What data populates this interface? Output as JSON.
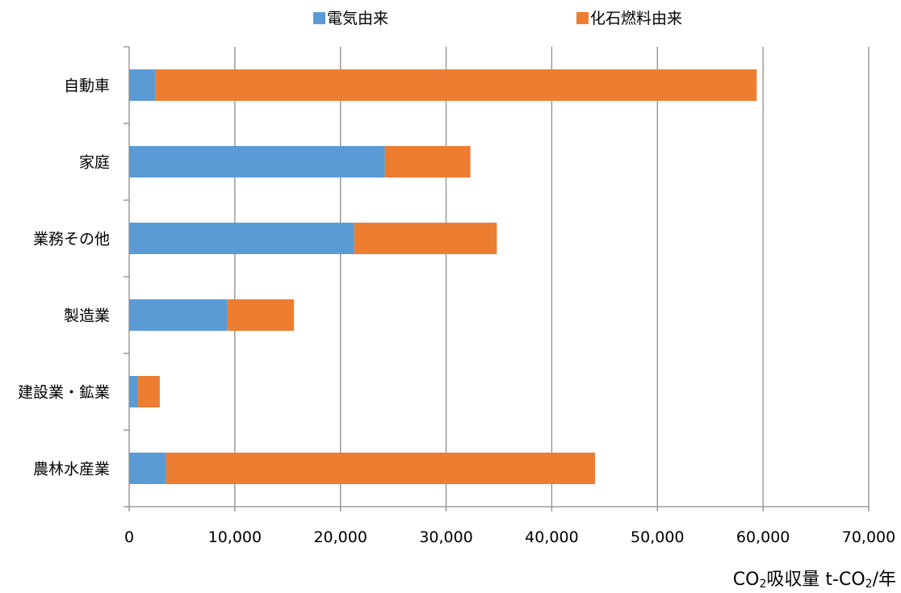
{
  "chart_data": {
    "type": "bar",
    "orientation": "horizontal",
    "stacked": true,
    "categories": [
      "自動車",
      "家庭",
      "業務その他",
      "製造業",
      "建設業・鉱業",
      "農林水産業"
    ],
    "series": [
      {
        "name": "電気由来",
        "color": "#5b9bd5",
        "values": [
          2500,
          24200,
          21300,
          9300,
          800,
          3500
        ]
      },
      {
        "name": "化石燃料由来",
        "color": "#ed7d31",
        "values": [
          56900,
          8100,
          13500,
          6300,
          2100,
          40600
        ]
      }
    ],
    "xlim": [
      0,
      70000
    ],
    "xticks": [
      "0",
      "10,000",
      "20,000",
      "30,000",
      "40,000",
      "50,000",
      "60,000",
      "70,000"
    ],
    "xlabel_parts": {
      "pre": "CO",
      "sub1": "2",
      "mid": "吸収量  t-CO",
      "sub2": "2",
      "post": "/年"
    },
    "grid": "vertical",
    "legend_position": "top"
  }
}
